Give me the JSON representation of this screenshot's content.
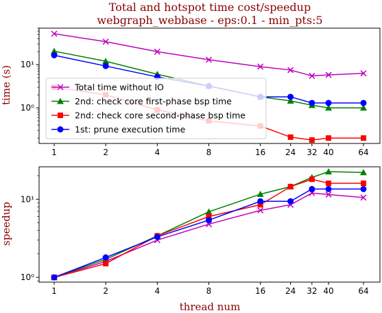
{
  "chart_data": [
    {
      "type": "line",
      "title": "Total and hotspot time cost/speedup",
      "subtitle": "webgraph_webbase - eps:0.1 - min_pts:5",
      "xlabel": "",
      "ylabel": "time (s)",
      "x_scale": "log2",
      "y_scale": "log",
      "x": [
        1,
        2,
        4,
        8,
        16,
        24,
        32,
        40,
        64
      ],
      "x_tick_labels": [
        "1",
        "2",
        "4",
        "8",
        "16",
        "24",
        "32",
        "40",
        "64"
      ],
      "y_ticks": [
        {
          "value": 1,
          "label": "10⁰"
        },
        {
          "value": 10,
          "label": "10¹"
        }
      ],
      "ylim": [
        0.15,
        70
      ],
      "legend_position": "lower-left",
      "grid": false,
      "series": [
        {
          "name": "Total time without IO",
          "color": "#bf00bf",
          "marker": "x",
          "values": [
            52,
            34,
            20,
            13,
            9,
            7.5,
            5.5,
            5.8,
            6.3
          ]
        },
        {
          "name": "2nd: check core first-phase bsp time",
          "color": "#008000",
          "marker": "triangle",
          "values": [
            20.5,
            12,
            6,
            3.2,
            1.8,
            1.45,
            1.15,
            1.0,
            1.0
          ]
        },
        {
          "name": "2nd: check core second-phase bsp time",
          "color": "#ff0000",
          "marker": "square",
          "values": [
            3.0,
            2.0,
            0.9,
            0.5,
            0.38,
            0.21,
            0.18,
            0.2,
            0.2
          ]
        },
        {
          "name": "1st: prune execution time",
          "color": "#0000ff",
          "marker": "circle",
          "values": [
            16.5,
            9.3,
            5.2,
            3.2,
            1.8,
            1.8,
            1.3,
            1.3,
            1.3
          ]
        }
      ]
    },
    {
      "type": "line",
      "title": "",
      "xlabel": "thread num",
      "ylabel": "speedup",
      "x_scale": "log2",
      "y_scale": "log",
      "x": [
        1,
        2,
        4,
        8,
        16,
        24,
        32,
        40,
        64
      ],
      "x_tick_labels": [
        "1",
        "2",
        "4",
        "8",
        "16",
        "24",
        "32",
        "40",
        "64"
      ],
      "y_ticks": [
        {
          "value": 1,
          "label": "10⁰"
        },
        {
          "value": 10,
          "label": "10¹"
        }
      ],
      "ylim": [
        0.87,
        26
      ],
      "grid": false,
      "series": [
        {
          "color": "#bf00bf",
          "marker": "x",
          "values": [
            1.0,
            1.6,
            3.0,
            4.8,
            7.2,
            8.5,
            12,
            11.5,
            10.5
          ]
        },
        {
          "color": "#008000",
          "marker": "triangle",
          "values": [
            1.0,
            1.7,
            3.4,
            6.9,
            11.6,
            14.5,
            19,
            22.5,
            22
          ]
        },
        {
          "color": "#ff0000",
          "marker": "square",
          "values": [
            1.0,
            1.5,
            3.4,
            6.0,
            8.5,
            14.5,
            18,
            16,
            16
          ]
        },
        {
          "color": "#0000ff",
          "marker": "circle",
          "values": [
            1.0,
            1.8,
            3.3,
            5.4,
            9.4,
            9.4,
            13.5,
            13.5,
            13.5
          ]
        }
      ]
    }
  ]
}
